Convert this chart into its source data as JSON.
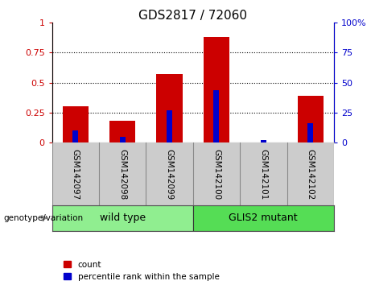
{
  "title": "GDS2817 / 72060",
  "categories": [
    "GSM142097",
    "GSM142098",
    "GSM142099",
    "GSM142100",
    "GSM142101",
    "GSM142102"
  ],
  "red_values": [
    0.3,
    0.18,
    0.57,
    0.88,
    0.003,
    0.39
  ],
  "blue_values": [
    0.1,
    0.05,
    0.27,
    0.44,
    0.02,
    0.16
  ],
  "groups": [
    {
      "label": "wild type",
      "indices": [
        0,
        1,
        2
      ],
      "color": "#90EE90"
    },
    {
      "label": "GLIS2 mutant",
      "indices": [
        3,
        4,
        5
      ],
      "color": "#55DD55"
    }
  ],
  "group_label": "genotype/variation",
  "left_axis_color": "#CC0000",
  "right_axis_color": "#0000CC",
  "left_yticks": [
    0,
    0.25,
    0.5,
    0.75,
    1
  ],
  "left_yticklabels": [
    "0",
    "0.25",
    "0.5",
    "0.75",
    "1"
  ],
  "right_yticks": [
    0,
    25,
    50,
    75,
    100
  ],
  "right_yticklabels": [
    "0",
    "25",
    "50",
    "75",
    "100%"
  ],
  "bar_color_red": "#CC0000",
  "bar_color_blue": "#0000CC",
  "red_bar_width": 0.55,
  "blue_bar_width": 0.12,
  "tick_area_color": "#cccccc",
  "legend_items": [
    "count",
    "percentile rank within the sample"
  ]
}
